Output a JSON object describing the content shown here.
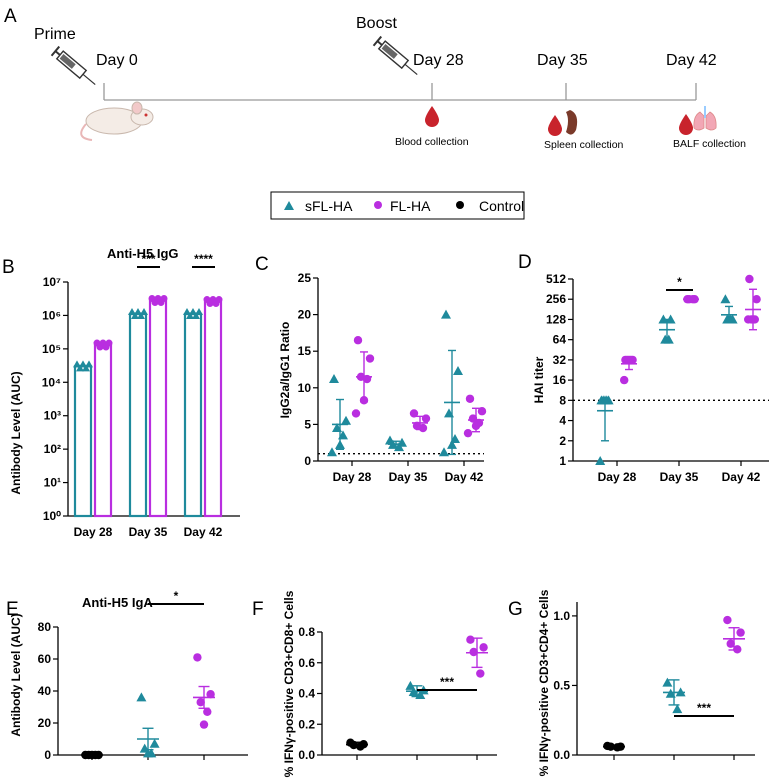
{
  "colors": {
    "teal": "#1f8a9c",
    "purple": "#b92ee0",
    "black": "#000000",
    "blood": "#c8232c",
    "spleen": "#7a3a2a",
    "lung": "#f2a7b5"
  },
  "timeline": {
    "panel": "A",
    "prime_label": "Prime",
    "boost_label": "Boost",
    "days": [
      "Day 0",
      "Day 28",
      "Day 35",
      "Day 42"
    ],
    "collections": [
      "Blood collection",
      "Spleen collection",
      "BALF collection"
    ]
  },
  "legend": [
    {
      "label": "sFL-HA",
      "marker": "triangle",
      "color": "teal"
    },
    {
      "label": "FL-HA",
      "marker": "circle",
      "color": "purple"
    },
    {
      "label": "Control",
      "marker": "circle",
      "color": "black"
    }
  ],
  "chart_data": [
    {
      "panel": "B",
      "type": "bar",
      "title": "Anti-H5 IgG",
      "ylabel": "Antibody Level (AUC)",
      "yscale": "log10",
      "ylim": [
        1,
        10000000
      ],
      "ytick_labels": [
        "10⁰",
        "10¹",
        "10²",
        "10³",
        "10⁴",
        "10⁵",
        "10⁶",
        "10⁷"
      ],
      "categories": [
        "Day 28",
        "Day 35",
        "Day 42"
      ],
      "series": [
        {
          "name": "sFL-HA",
          "color": "teal",
          "values": [
            30000,
            1100000,
            1100000
          ]
        },
        {
          "name": "FL-HA",
          "color": "purple",
          "values": [
            130000,
            2800000,
            2600000
          ]
        }
      ],
      "significance": [
        {
          "category": "Day 35",
          "label": "***"
        },
        {
          "category": "Day 42",
          "label": "****"
        }
      ]
    },
    {
      "panel": "C",
      "type": "scatter",
      "ylabel": "IgG2a/IgG1 Ratio",
      "ylim": [
        0,
        25
      ],
      "yticks": [
        0,
        5,
        10,
        15,
        20,
        25
      ],
      "categories": [
        "Day 28",
        "Day 35",
        "Day 42"
      ],
      "reference_line": 1,
      "series": [
        {
          "name": "sFL-HA",
          "color": "teal",
          "marker": "triangle",
          "points": [
            [
              11.2,
              5.5,
              4.5,
              3.5,
              2.2,
              1.2
            ],
            [
              2.8,
              2.5,
              2.2,
              1.9
            ],
            [
              20.0,
              12.3,
              6.5,
              3.0,
              2.2,
              1.2
            ]
          ],
          "mean": [
            5.0,
            2.3,
            8.0
          ],
          "sd": [
            3.4,
            0.4,
            7.1
          ]
        },
        {
          "name": "FL-HA",
          "color": "purple",
          "marker": "circle",
          "points": [
            [
              16.5,
              14.0,
              11.5,
              11.2,
              8.3,
              6.5
            ],
            [
              6.5,
              5.8,
              4.8,
              4.5
            ],
            [
              8.5,
              6.8,
              5.8,
              5.2,
              4.8,
              3.8
            ]
          ],
          "mean": [
            11.5,
            5.2,
            5.6
          ],
          "sd": [
            3.4,
            0.9,
            1.6
          ]
        }
      ]
    },
    {
      "panel": "D",
      "type": "scatter",
      "ylabel": "HAI titer",
      "yscale": "log2",
      "ylim": [
        1,
        512
      ],
      "yticks": [
        1,
        2,
        4,
        8,
        16,
        32,
        64,
        128,
        256,
        512
      ],
      "categories": [
        "Day 28",
        "Day 35",
        "Day 42"
      ],
      "reference_line": 8,
      "series": [
        {
          "name": "sFL-HA",
          "color": "teal",
          "marker": "triangle",
          "points": [
            [
              8,
              8,
              8,
              8,
              8,
              1
            ],
            [
              128,
              128,
              64,
              64
            ],
            [
              256,
              128,
              128,
              128,
              128
            ]
          ],
          "mean": [
            5.6,
            90,
            150
          ],
          "sd_low": [
            2,
            64,
            118
          ],
          "sd_high": [
            8,
            128,
            200
          ]
        },
        {
          "name": "FL-HA",
          "color": "purple",
          "marker": "circle",
          "points": [
            [
              32,
              32,
              32,
              32,
              32,
              16
            ],
            [
              256,
              256,
              256,
              256
            ],
            [
              512,
              256,
              128,
              128,
              128,
              128
            ]
          ],
          "mean": [
            28,
            256,
            180
          ],
          "sd_low": [
            23,
            256,
            90
          ],
          "sd_high": [
            32,
            256,
            360
          ]
        }
      ],
      "significance": [
        {
          "category": "Day 35",
          "label": "*"
        }
      ]
    },
    {
      "panel": "E",
      "type": "scatter",
      "title": "Anti-H5 IgA",
      "ylabel": "Antibody Level (AUC)",
      "ylim": [
        0,
        80
      ],
      "yticks": [
        0,
        20,
        40,
        60,
        80
      ],
      "groups": [
        {
          "name": "Control",
          "color": "black",
          "marker": "circle",
          "points": [
            0,
            0,
            0,
            0,
            0
          ],
          "mean": 0,
          "sd": 0.3
        },
        {
          "name": "sFL-HA",
          "color": "teal",
          "marker": "triangle",
          "points": [
            36,
            7,
            4,
            1,
            1
          ],
          "mean": 10,
          "sd": 6.7
        },
        {
          "name": "FL-HA",
          "color": "purple",
          "marker": "circle",
          "points": [
            61,
            38,
            33,
            27,
            19
          ],
          "mean": 36,
          "sd": 6.8
        }
      ],
      "significance": [
        {
          "groups": [
            "sFL-HA",
            "FL-HA"
          ],
          "label": "*"
        }
      ]
    },
    {
      "panel": "F",
      "type": "scatter",
      "ylabel": "% IFNγ-positive CD3+CD8+ Cells",
      "ylim": [
        0,
        0.8
      ],
      "yticks": [
        0.0,
        0.2,
        0.4,
        0.6,
        0.8
      ],
      "ytick_labels": [
        "0.0",
        "0.2",
        "0.4",
        "0.6",
        "0.8"
      ],
      "groups": [
        {
          "name": "Control",
          "color": "black",
          "marker": "circle",
          "points": [
            0.08,
            0.07,
            0.065,
            0.055
          ],
          "mean": 0.068,
          "sd": 0.015
        },
        {
          "name": "sFL-HA",
          "color": "teal",
          "marker": "triangle",
          "points": [
            0.45,
            0.42,
            0.41,
            0.39
          ],
          "mean": 0.415,
          "sd": 0.035
        },
        {
          "name": "FL-HA",
          "color": "purple",
          "marker": "circle",
          "points": [
            0.75,
            0.7,
            0.67,
            0.53
          ],
          "mean": 0.665,
          "sd": 0.095
        }
      ],
      "significance": [
        {
          "groups": [
            "sFL-HA",
            "FL-HA"
          ],
          "label": "***"
        }
      ]
    },
    {
      "panel": "G",
      "type": "scatter",
      "ylabel": "% IFNγ-positive CD3+CD4+ Cells",
      "ylim": [
        0,
        1.1
      ],
      "yticks": [
        0.0,
        0.5,
        1.0
      ],
      "ytick_labels": [
        "0.0",
        "0.5",
        "1.0"
      ],
      "groups": [
        {
          "name": "Control",
          "color": "black",
          "marker": "circle",
          "points": [
            0.065,
            0.06,
            0.06,
            0.055
          ],
          "mean": 0.06,
          "sd": 0.005
        },
        {
          "name": "sFL-HA",
          "color": "teal",
          "marker": "triangle",
          "points": [
            0.52,
            0.45,
            0.44,
            0.33
          ],
          "mean": 0.45,
          "sd": 0.09
        },
        {
          "name": "FL-HA",
          "color": "purple",
          "marker": "circle",
          "points": [
            0.97,
            0.88,
            0.8,
            0.76
          ],
          "mean": 0.835,
          "sd": 0.08
        }
      ],
      "significance": [
        {
          "groups": [
            "sFL-HA",
            "FL-HA"
          ],
          "label": "***"
        }
      ]
    }
  ]
}
